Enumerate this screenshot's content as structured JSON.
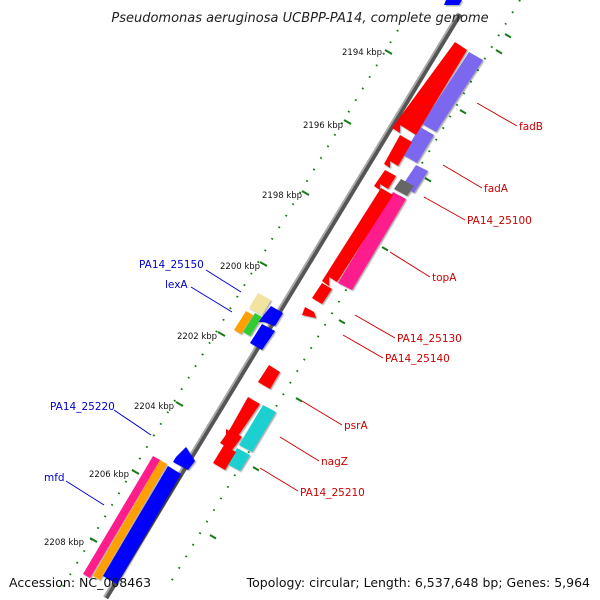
{
  "title": "Pseudomonas aeruginosa UCBPP-PA14, complete genome",
  "footer": {
    "accession": "Accession: NC_008463",
    "summary": "Topology: circular; Length: 6,537,648 bp; Genes: 5,964"
  },
  "scale_labels": [
    "2194 kbp",
    "2196 kbp",
    "2198 kbp",
    "2200 kbp",
    "2202 kbp",
    "2204 kbp",
    "2206 kbp",
    "2208 kbp"
  ],
  "colors": {
    "forward_label": "#cc0000",
    "reverse_label": "#0000cc",
    "backbone": "#808080",
    "tick": "#1a7a1a",
    "red_gene": "#ff0000",
    "blue_gene": "#0000ff",
    "purple_track": "#7b68ee",
    "magenta_track": "#ff1a8c",
    "cyan_track": "#1fd0d0",
    "orange_track": "#ffa000",
    "grey_track": "#666666",
    "yellow_track": "#f0e4a0",
    "green_track": "#33cc33"
  },
  "gene_labels": [
    {
      "text": "fadB",
      "strand": "forward"
    },
    {
      "text": "fadA",
      "strand": "forward"
    },
    {
      "text": "PA14_25100",
      "strand": "forward"
    },
    {
      "text": "topA",
      "strand": "forward"
    },
    {
      "text": "PA14_25130",
      "strand": "forward"
    },
    {
      "text": "PA14_25140",
      "strand": "forward"
    },
    {
      "text": "psrA",
      "strand": "forward"
    },
    {
      "text": "nagZ",
      "strand": "forward"
    },
    {
      "text": "PA14_25210",
      "strand": "forward"
    },
    {
      "text": "PA14_25150",
      "strand": "reverse"
    },
    {
      "text": "lexA",
      "strand": "reverse"
    },
    {
      "text": "PA14_25220",
      "strand": "reverse"
    },
    {
      "text": "mfd",
      "strand": "reverse"
    }
  ]
}
